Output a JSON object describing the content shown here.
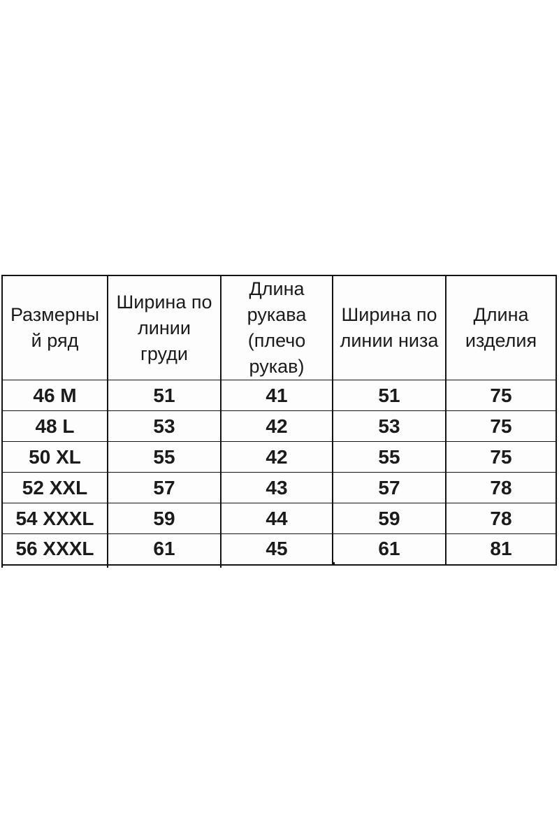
{
  "colors": {
    "background": "#ffffff",
    "cell_background": "#fdfdfd",
    "border": "#141414",
    "text": "#1b1b1b"
  },
  "table": {
    "headers": [
      {
        "id": "size",
        "label": "Размерный ряд",
        "lines": [
          "Размерны",
          "й ряд"
        ]
      },
      {
        "id": "chest",
        "label": "Ширина по линии груди",
        "lines": [
          "Ширина по",
          "линии",
          "груди"
        ]
      },
      {
        "id": "sleeve",
        "label": "Длина рукава (плечо рукав)",
        "lines": [
          "Длина",
          "рукава",
          "(плечо",
          "рукав)"
        ]
      },
      {
        "id": "bottom",
        "label": "Ширина по линии низа",
        "lines": [
          "Ширина по",
          "линии низа"
        ]
      },
      {
        "id": "length",
        "label": "Длина изделия",
        "lines": [
          "Длина",
          "изделия"
        ]
      }
    ],
    "rows": [
      {
        "size": "46 M",
        "chest": "51",
        "sleeve": "41",
        "bottom": "51",
        "length": "75"
      },
      {
        "size": "48 L",
        "chest": "53",
        "sleeve": "42",
        "bottom": "53",
        "length": "75"
      },
      {
        "size": "50 XL",
        "chest": "55",
        "sleeve": "42",
        "bottom": "55",
        "length": "75"
      },
      {
        "size": "52 XXL",
        "chest": "57",
        "sleeve": "43",
        "bottom": "57",
        "length": "78"
      },
      {
        "size": "54 XXXL",
        "chest": "59",
        "sleeve": "44",
        "bottom": "59",
        "length": "78"
      },
      {
        "size": "56 XXXL",
        "chest": "61",
        "sleeve": "45",
        "bottom": "61",
        "length": "81"
      }
    ]
  }
}
